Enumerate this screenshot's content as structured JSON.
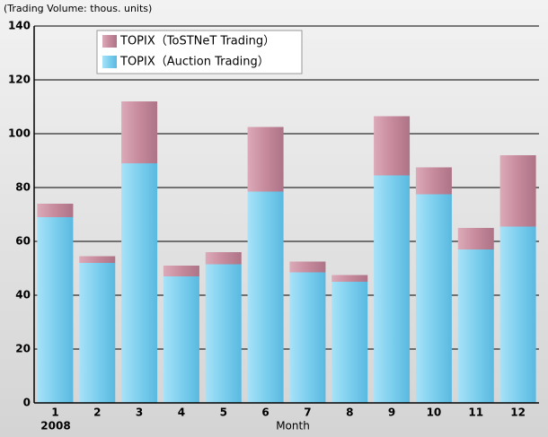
{
  "chart_data": {
    "type": "stacked_bar",
    "y_axis_label": "(Trading Volume: thous. units)",
    "x_axis_label": "Month",
    "annotation": "2008",
    "categories": [
      "1",
      "2",
      "3",
      "4",
      "5",
      "6",
      "7",
      "8",
      "9",
      "10",
      "11",
      "12"
    ],
    "series": [
      {
        "name": "TOPIX（Auction Trading）",
        "color": "#7ccfee",
        "values": [
          69,
          52,
          89,
          47,
          51.5,
          78.5,
          48.5,
          45,
          84.5,
          77.5,
          57,
          65.5
        ]
      },
      {
        "name": "TOPIX（ToSTNeT Trading）",
        "color": "#c68a9c",
        "values": [
          5,
          2.5,
          23,
          4,
          4.5,
          24,
          4,
          2.5,
          22,
          10,
          8,
          26.5
        ]
      }
    ],
    "ylim": [
      0,
      140
    ],
    "yticks": [
      0,
      20,
      40,
      60,
      80,
      100,
      120,
      140
    ],
    "grid": true
  }
}
